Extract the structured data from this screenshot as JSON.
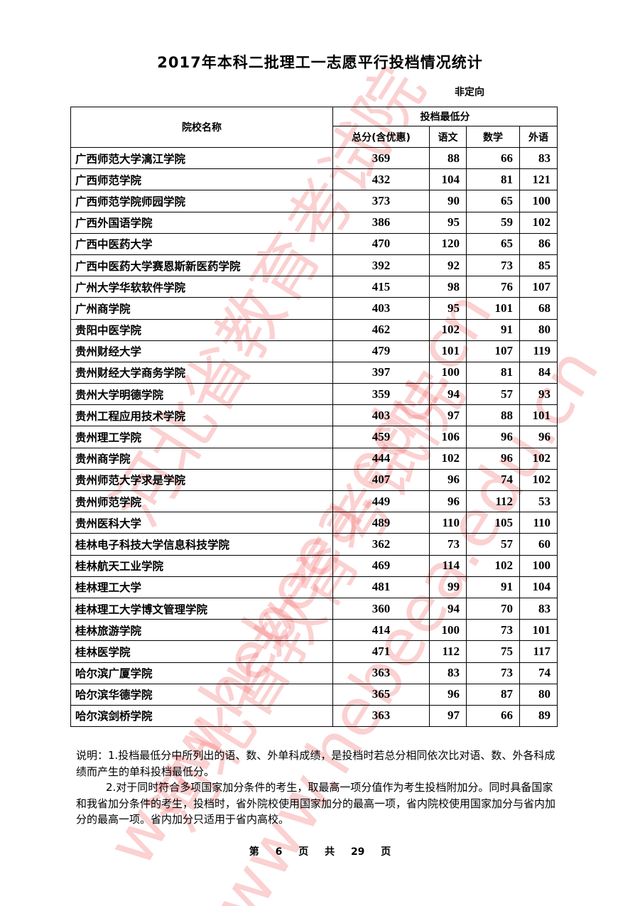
{
  "title": "2017年本科二批理工一志愿平行投档情况统计",
  "subtitle": "非定向",
  "table": {
    "header_name": "院校名称",
    "header_group": "投档最低分",
    "header_cols": [
      "总分(含优惠)",
      "语文",
      "数学",
      "外语"
    ],
    "rows": [
      {
        "name": "广西师范大学漓江学院",
        "total": "369",
        "chinese": "88",
        "math": "66",
        "foreign": "83"
      },
      {
        "name": "广西师范学院",
        "total": "432",
        "chinese": "104",
        "math": "81",
        "foreign": "121"
      },
      {
        "name": "广西师范学院师园学院",
        "total": "373",
        "chinese": "90",
        "math": "65",
        "foreign": "100"
      },
      {
        "name": "广西外国语学院",
        "total": "386",
        "chinese": "95",
        "math": "59",
        "foreign": "102"
      },
      {
        "name": "广西中医药大学",
        "total": "470",
        "chinese": "120",
        "math": "65",
        "foreign": "86"
      },
      {
        "name": "广西中医药大学赛恩斯新医药学院",
        "total": "392",
        "chinese": "92",
        "math": "73",
        "foreign": "85"
      },
      {
        "name": "广州大学华软软件学院",
        "total": "415",
        "chinese": "98",
        "math": "76",
        "foreign": "107"
      },
      {
        "name": "广州商学院",
        "total": "403",
        "chinese": "95",
        "math": "101",
        "foreign": "68"
      },
      {
        "name": "贵阳中医学院",
        "total": "462",
        "chinese": "102",
        "math": "91",
        "foreign": "80"
      },
      {
        "name": "贵州财经大学",
        "total": "479",
        "chinese": "101",
        "math": "107",
        "foreign": "119"
      },
      {
        "name": "贵州财经大学商务学院",
        "total": "397",
        "chinese": "100",
        "math": "81",
        "foreign": "84"
      },
      {
        "name": "贵州大学明德学院",
        "total": "359",
        "chinese": "94",
        "math": "57",
        "foreign": "93"
      },
      {
        "name": "贵州工程应用技术学院",
        "total": "403",
        "chinese": "97",
        "math": "88",
        "foreign": "101"
      },
      {
        "name": "贵州理工学院",
        "total": "459",
        "chinese": "106",
        "math": "96",
        "foreign": "96"
      },
      {
        "name": "贵州商学院",
        "total": "444",
        "chinese": "102",
        "math": "96",
        "foreign": "102"
      },
      {
        "name": "贵州师范大学求是学院",
        "total": "407",
        "chinese": "96",
        "math": "74",
        "foreign": "102"
      },
      {
        "name": "贵州师范学院",
        "total": "449",
        "chinese": "96",
        "math": "112",
        "foreign": "53"
      },
      {
        "name": "贵州医科大学",
        "total": "489",
        "chinese": "110",
        "math": "105",
        "foreign": "110"
      },
      {
        "name": "桂林电子科技大学信息科技学院",
        "total": "362",
        "chinese": "73",
        "math": "57",
        "foreign": "60"
      },
      {
        "name": "桂林航天工业学院",
        "total": "469",
        "chinese": "114",
        "math": "102",
        "foreign": "100"
      },
      {
        "name": "桂林理工大学",
        "total": "481",
        "chinese": "99",
        "math": "91",
        "foreign": "104"
      },
      {
        "name": "桂林理工大学博文管理学院",
        "total": "360",
        "chinese": "94",
        "math": "70",
        "foreign": "83"
      },
      {
        "name": "桂林旅游学院",
        "total": "414",
        "chinese": "100",
        "math": "73",
        "foreign": "101"
      },
      {
        "name": "桂林医学院",
        "total": "471",
        "chinese": "112",
        "math": "75",
        "foreign": "117"
      },
      {
        "name": "哈尔滨广厦学院",
        "total": "363",
        "chinese": "83",
        "math": "73",
        "foreign": "74"
      },
      {
        "name": "哈尔滨华德学院",
        "total": "365",
        "chinese": "96",
        "math": "87",
        "foreign": "80"
      },
      {
        "name": "哈尔滨剑桥学院",
        "total": "363",
        "chinese": "97",
        "math": "66",
        "foreign": "89"
      }
    ]
  },
  "notes": {
    "note1": "说明：1.投档最低分中所列出的语、数、外单科成绩，是投档时若总分相同依次比对语、数、外各科成绩而产生的单科投档最低分。",
    "note2": "2.对于同时符合多项国家加分条件的考生，取最高一项分值作为考生投档附加分。同时具备国家和我省加分条件的考生，投档时，省外院校使用国家加分的最高一项，省内院校使用国家加分与省内加分的最高一项。省内加分只适用于省内高校。"
  },
  "footer": "第 6 页 共 29 页",
  "watermark": {
    "text_cn": "河北省教育考试院",
    "text_url": "www.hebeea.edu.cn",
    "color": "#f05a5a"
  }
}
